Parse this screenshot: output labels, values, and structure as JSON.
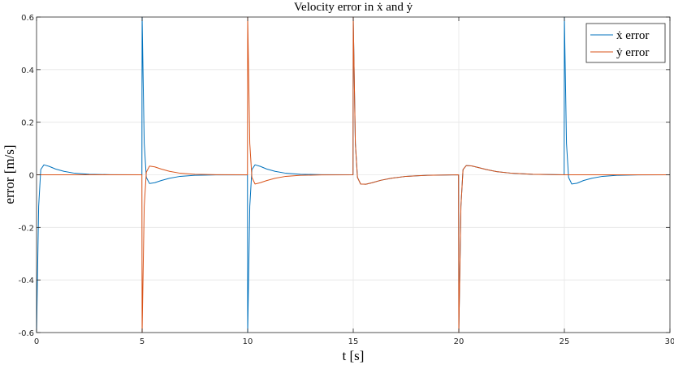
{
  "chart_data": {
    "type": "line",
    "title": "Velocity error in ẋ and ẏ",
    "xlabel": "t [s]",
    "ylabel": "error [m/s]",
    "xlim": [
      0,
      30
    ],
    "ylim": [
      -0.6,
      0.6
    ],
    "xticks": [
      0,
      5,
      10,
      15,
      20,
      25,
      30
    ],
    "xtick_labels": [
      "0",
      "5",
      "10",
      "15",
      "20",
      "25",
      "30"
    ],
    "yticks": [
      -0.6,
      -0.4,
      -0.2,
      0,
      0.2,
      0.4,
      0.6
    ],
    "ytick_labels": [
      "-0.6",
      "-0.4",
      "-0.2",
      "0",
      "0.2",
      "0.4",
      "0.6"
    ],
    "grid": true,
    "legend_position": "top-right",
    "series": [
      {
        "name": "ẋ error",
        "color": "#0072BD",
        "points": [
          [
            0,
            -0.6
          ],
          [
            0.1,
            -0.12
          ],
          [
            0.2,
            0.02
          ],
          [
            0.35,
            0.038
          ],
          [
            0.6,
            0.032
          ],
          [
            0.9,
            0.022
          ],
          [
            1.3,
            0.013
          ],
          [
            1.8,
            0.006
          ],
          [
            2.5,
            0.002
          ],
          [
            3.5,
            0.0005
          ],
          [
            4.99,
            0
          ],
          [
            5,
            0.6
          ],
          [
            5.1,
            0.12
          ],
          [
            5.2,
            -0.01
          ],
          [
            5.35,
            -0.033
          ],
          [
            5.6,
            -0.03
          ],
          [
            5.9,
            -0.022
          ],
          [
            6.3,
            -0.013
          ],
          [
            6.8,
            -0.006
          ],
          [
            7.5,
            -0.002
          ],
          [
            8.5,
            -0.0005
          ],
          [
            9.99,
            0
          ],
          [
            10,
            -0.6
          ],
          [
            10.1,
            -0.12
          ],
          [
            10.2,
            0.02
          ],
          [
            10.35,
            0.038
          ],
          [
            10.6,
            0.032
          ],
          [
            10.9,
            0.022
          ],
          [
            11.3,
            0.013
          ],
          [
            11.8,
            0.006
          ],
          [
            12.5,
            0.002
          ],
          [
            13.5,
            0.0005
          ],
          [
            14.99,
            0
          ],
          [
            15,
            0.6
          ],
          [
            15.1,
            0.12
          ],
          [
            15.2,
            -0.01
          ],
          [
            15.35,
            -0.035
          ],
          [
            15.6,
            -0.036
          ],
          [
            15.9,
            -0.03
          ],
          [
            16.3,
            -0.021
          ],
          [
            16.8,
            -0.013
          ],
          [
            17.5,
            -0.006
          ],
          [
            18.5,
            -0.002
          ],
          [
            19.99,
            0
          ],
          [
            20,
            -0.6
          ],
          [
            20.1,
            -0.12
          ],
          [
            20.2,
            0.02
          ],
          [
            20.35,
            0.035
          ],
          [
            20.6,
            0.034
          ],
          [
            20.9,
            0.028
          ],
          [
            21.3,
            0.02
          ],
          [
            21.8,
            0.012
          ],
          [
            22.5,
            0.006
          ],
          [
            23.5,
            0.002
          ],
          [
            24.99,
            0
          ],
          [
            25,
            0.6
          ],
          [
            25.1,
            0.12
          ],
          [
            25.2,
            -0.01
          ],
          [
            25.35,
            -0.035
          ],
          [
            25.6,
            -0.032
          ],
          [
            25.9,
            -0.022
          ],
          [
            26.3,
            -0.013
          ],
          [
            26.8,
            -0.006
          ],
          [
            27.5,
            -0.002
          ],
          [
            28.5,
            -0.0005
          ],
          [
            30,
            0
          ]
        ]
      },
      {
        "name": "ẏ error",
        "color": "#D95319",
        "points": [
          [
            0,
            0
          ],
          [
            4.99,
            0
          ],
          [
            5,
            -0.6
          ],
          [
            5.1,
            -0.12
          ],
          [
            5.2,
            0.01
          ],
          [
            5.35,
            0.033
          ],
          [
            5.6,
            0.03
          ],
          [
            5.9,
            0.022
          ],
          [
            6.3,
            0.013
          ],
          [
            6.8,
            0.006
          ],
          [
            7.5,
            0.002
          ],
          [
            8.5,
            0.0005
          ],
          [
            9.99,
            0
          ],
          [
            10,
            0.6
          ],
          [
            10.1,
            0.12
          ],
          [
            10.2,
            -0.01
          ],
          [
            10.35,
            -0.035
          ],
          [
            10.6,
            -0.03
          ],
          [
            10.9,
            -0.022
          ],
          [
            11.3,
            -0.013
          ],
          [
            11.8,
            -0.006
          ],
          [
            12.5,
            -0.002
          ],
          [
            13.5,
            -0.0005
          ],
          [
            14.99,
            0
          ],
          [
            15,
            0.6
          ],
          [
            15.1,
            0.12
          ],
          [
            15.2,
            -0.01
          ],
          [
            15.35,
            -0.035
          ],
          [
            15.6,
            -0.036
          ],
          [
            15.9,
            -0.03
          ],
          [
            16.3,
            -0.021
          ],
          [
            16.8,
            -0.013
          ],
          [
            17.5,
            -0.006
          ],
          [
            18.5,
            -0.002
          ],
          [
            19.99,
            0
          ],
          [
            20,
            -0.6
          ],
          [
            20.1,
            -0.12
          ],
          [
            20.2,
            0.02
          ],
          [
            20.35,
            0.035
          ],
          [
            20.6,
            0.034
          ],
          [
            20.9,
            0.028
          ],
          [
            21.3,
            0.02
          ],
          [
            21.8,
            0.012
          ],
          [
            22.5,
            0.006
          ],
          [
            23.5,
            0.002
          ],
          [
            24.99,
            0
          ],
          [
            25,
            0
          ],
          [
            30,
            0
          ]
        ]
      }
    ]
  }
}
